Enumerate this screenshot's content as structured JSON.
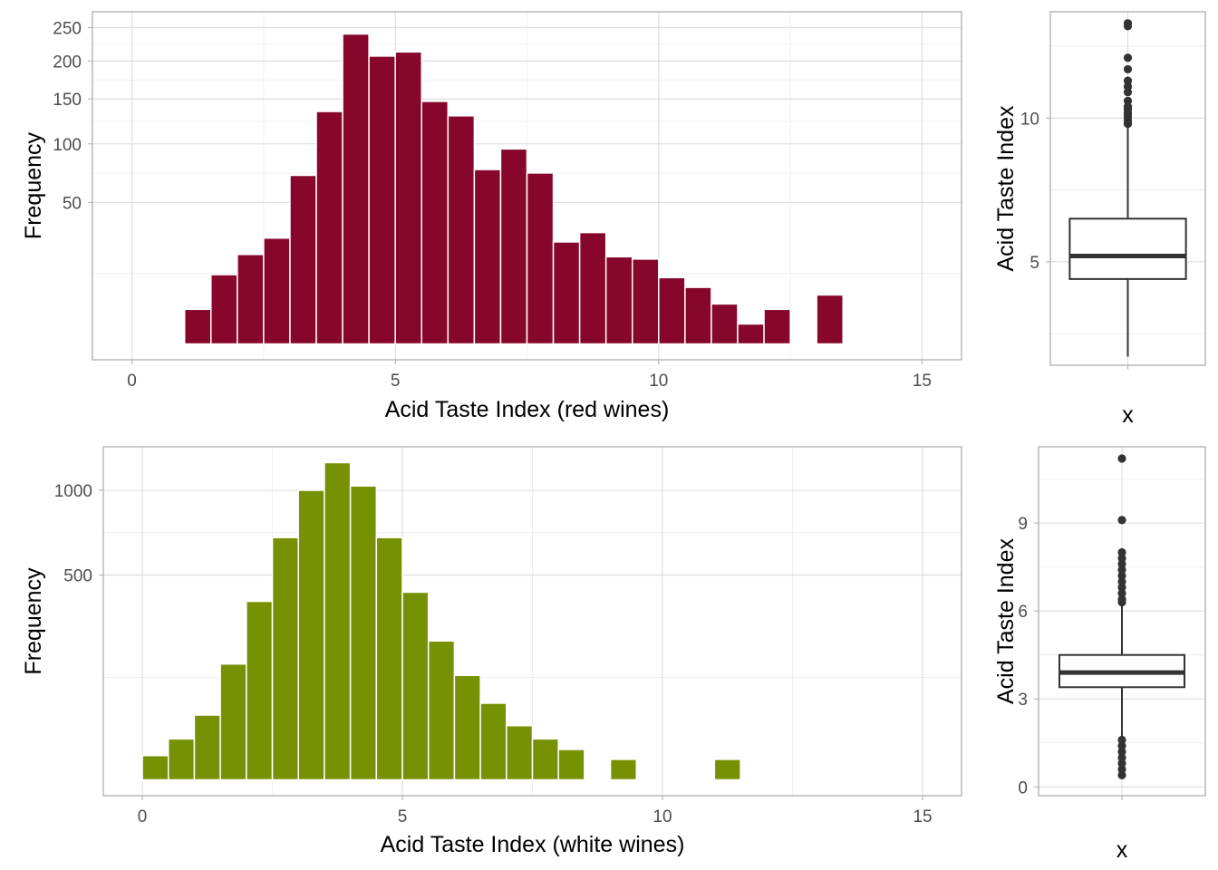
{
  "chart_data": [
    {
      "type": "bar",
      "subtype": "histogram",
      "xlabel": "Acid Taste Index (red wines)",
      "ylabel": "Frequency",
      "color": "#87062b",
      "bin_width": 0.5,
      "xlim": [
        0,
        15
      ],
      "x_ticks": [
        0,
        5,
        10,
        15
      ],
      "y_scale": "sqrt",
      "ylim": [
        0,
        250
      ],
      "y_ticks": [
        50,
        100,
        150,
        200,
        250
      ],
      "x": [
        1.25,
        1.75,
        2.25,
        2.75,
        3.25,
        3.75,
        4.25,
        4.75,
        5.25,
        5.75,
        6.25,
        6.75,
        7.25,
        7.75,
        8.25,
        8.75,
        9.25,
        9.75,
        10.25,
        10.75,
        11.25,
        11.75,
        12.25,
        12.75,
        13.25
      ],
      "values": [
        3,
        12,
        20,
        28,
        71,
        135,
        240,
        207,
        213,
        147,
        130,
        76,
        95,
        73,
        26,
        31,
        19,
        18,
        11,
        8,
        4,
        1,
        3,
        0,
        6
      ]
    },
    {
      "type": "box",
      "xlabel": "x",
      "ylabel": "Acid Taste Index",
      "y_ticks": [
        5,
        10
      ],
      "ylim": [
        1.4,
        13.7
      ],
      "min": 1.7,
      "q1": 4.4,
      "median": 5.2,
      "q3": 6.5,
      "max": 9.7,
      "outliers": [
        9.8,
        9.9,
        10.0,
        10.1,
        10.2,
        10.3,
        10.4,
        10.6,
        10.9,
        11.1,
        11.3,
        11.7,
        12.1,
        13.2,
        13.3
      ]
    },
    {
      "type": "bar",
      "subtype": "histogram",
      "xlabel": "Acid Taste Index (white wines)",
      "ylabel": "Frequency",
      "color": "#779104",
      "bin_width": 0.5,
      "xlim": [
        0,
        15
      ],
      "x_ticks": [
        0,
        5,
        10,
        15
      ],
      "y_scale": "sqrt",
      "ylim": [
        0,
        1200
      ],
      "y_ticks": [
        500,
        1000
      ],
      "x": [
        0.25,
        0.75,
        1.25,
        1.75,
        2.25,
        2.75,
        3.25,
        3.75,
        4.25,
        4.75,
        5.25,
        5.75,
        6.25,
        6.75,
        7.25,
        7.75,
        8.25,
        8.75,
        9.25,
        9.75,
        10.25,
        10.75,
        11.25
      ],
      "values": [
        7,
        20,
        50,
        160,
        380,
        700,
        1000,
        1200,
        1030,
        700,
        420,
        230,
        130,
        70,
        35,
        20,
        11,
        0,
        5,
        0,
        0,
        0,
        5
      ]
    },
    {
      "type": "box",
      "xlabel": "x",
      "ylabel": "Acid Taste Index",
      "y_ticks": [
        0,
        3,
        6,
        9
      ],
      "ylim": [
        -0.3,
        11.6
      ],
      "min": 1.7,
      "q1": 3.4,
      "median": 3.9,
      "q3": 4.5,
      "max": 6.2,
      "outliers": [
        0.4,
        0.6,
        0.8,
        1.0,
        1.2,
        1.4,
        1.6,
        6.3,
        6.4,
        6.6,
        6.8,
        7.0,
        7.2,
        7.4,
        7.6,
        7.8,
        8.0,
        9.1,
        11.2
      ]
    }
  ]
}
